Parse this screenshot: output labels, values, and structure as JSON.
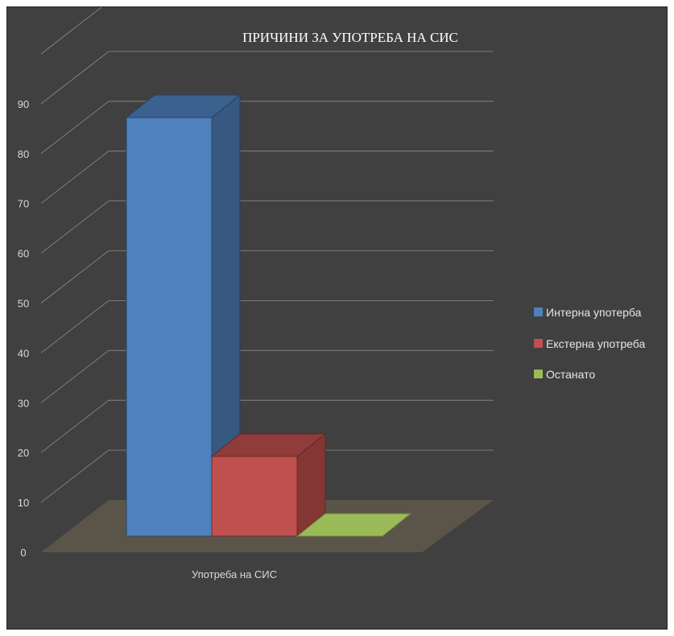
{
  "chart_data": {
    "type": "bar",
    "title": "ПРИЧИНИ ЗА УПОТРЕБА НА СИС",
    "categories": [
      "Употреба на СИС"
    ],
    "series": [
      {
        "name": "Интерна употерба",
        "values": [
          84
        ],
        "color": "#4f81bd"
      },
      {
        "name": "Екстерна употреба",
        "values": [
          16
        ],
        "color": "#c0504d"
      },
      {
        "name": "Останато",
        "values": [
          0
        ],
        "color": "#9bbb59"
      }
    ],
    "yticks": [
      "0",
      "10",
      "20",
      "30",
      "40",
      "50",
      "60",
      "70",
      "80",
      "90"
    ],
    "ylim": [
      0,
      90
    ],
    "grid": true,
    "legend": "right",
    "style": "3d-clustered-column"
  }
}
